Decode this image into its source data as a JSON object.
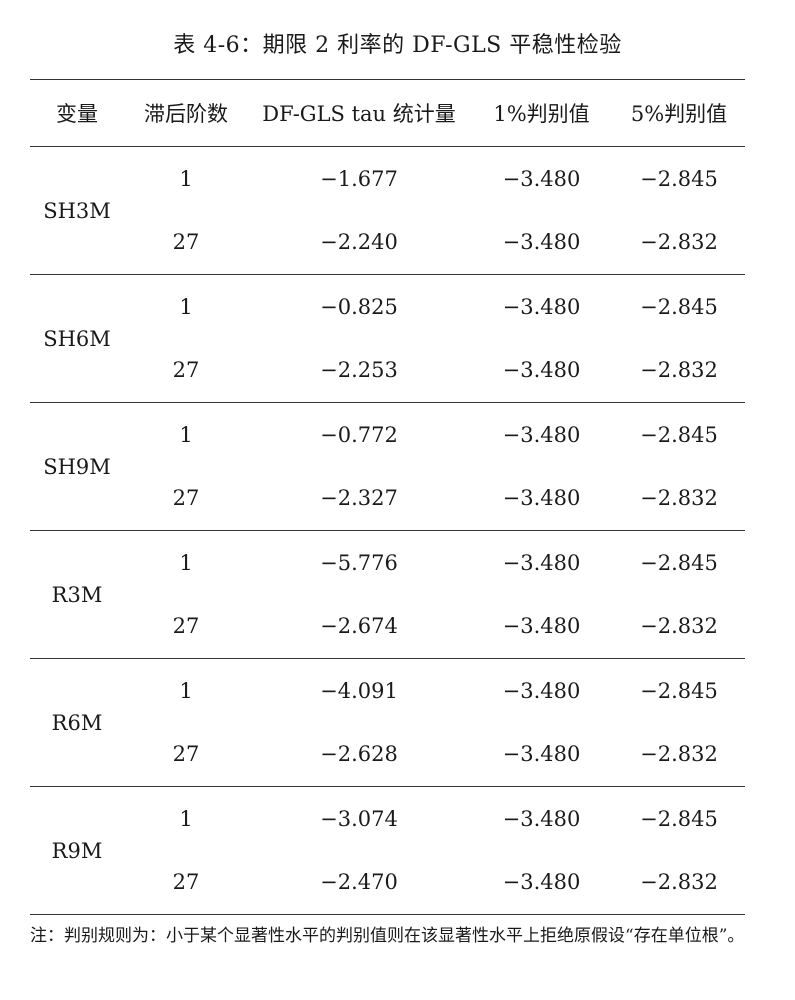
{
  "title": "表 4-6：期限 2 利率的 DF-GLS 平稳性检验",
  "headers": [
    "变量",
    "滞后阶数",
    "DF-GLS tau 统计量",
    "1%判别值",
    "5%判别值"
  ],
  "groups": [
    {
      "variable": "SH3M",
      "rows": [
        {
          "lag": "1",
          "tau": "−1.677",
          "cv1": "−3.480",
          "cv5": "−2.845"
        },
        {
          "lag": "27",
          "tau": "−2.240",
          "cv1": "−3.480",
          "cv5": "−2.832"
        }
      ]
    },
    {
      "variable": "SH6M",
      "rows": [
        {
          "lag": "1",
          "tau": "−0.825",
          "cv1": "−3.480",
          "cv5": "−2.845"
        },
        {
          "lag": "27",
          "tau": "−2.253",
          "cv1": "−3.480",
          "cv5": "−2.832"
        }
      ]
    },
    {
      "variable": "SH9M",
      "rows": [
        {
          "lag": "1",
          "tau": "−0.772",
          "cv1": "−3.480",
          "cv5": "−2.845"
        },
        {
          "lag": "27",
          "tau": "−2.327",
          "cv1": "−3.480",
          "cv5": "−2.832"
        }
      ]
    },
    {
      "variable": "R3M",
      "rows": [
        {
          "lag": "1",
          "tau": "−5.776",
          "cv1": "−3.480",
          "cv5": "−2.845"
        },
        {
          "lag": "27",
          "tau": "−2.674",
          "cv1": "−3.480",
          "cv5": "−2.832"
        }
      ]
    },
    {
      "variable": "R6M",
      "rows": [
        {
          "lag": "1",
          "tau": "−4.091",
          "cv1": "−3.480",
          "cv5": "−2.845"
        },
        {
          "lag": "27",
          "tau": "−2.628",
          "cv1": "−3.480",
          "cv5": "−2.832"
        }
      ]
    },
    {
      "variable": "R9M",
      "rows": [
        {
          "lag": "1",
          "tau": "−3.074",
          "cv1": "−3.480",
          "cv5": "−2.845"
        },
        {
          "lag": "27",
          "tau": "−2.470",
          "cv1": "−3.480",
          "cv5": "−2.832"
        }
      ]
    }
  ],
  "note": "注：判别规则为：小于某个显著性水平的判别值则在该显著性水平上拒绝原假设“存在单位根”。"
}
